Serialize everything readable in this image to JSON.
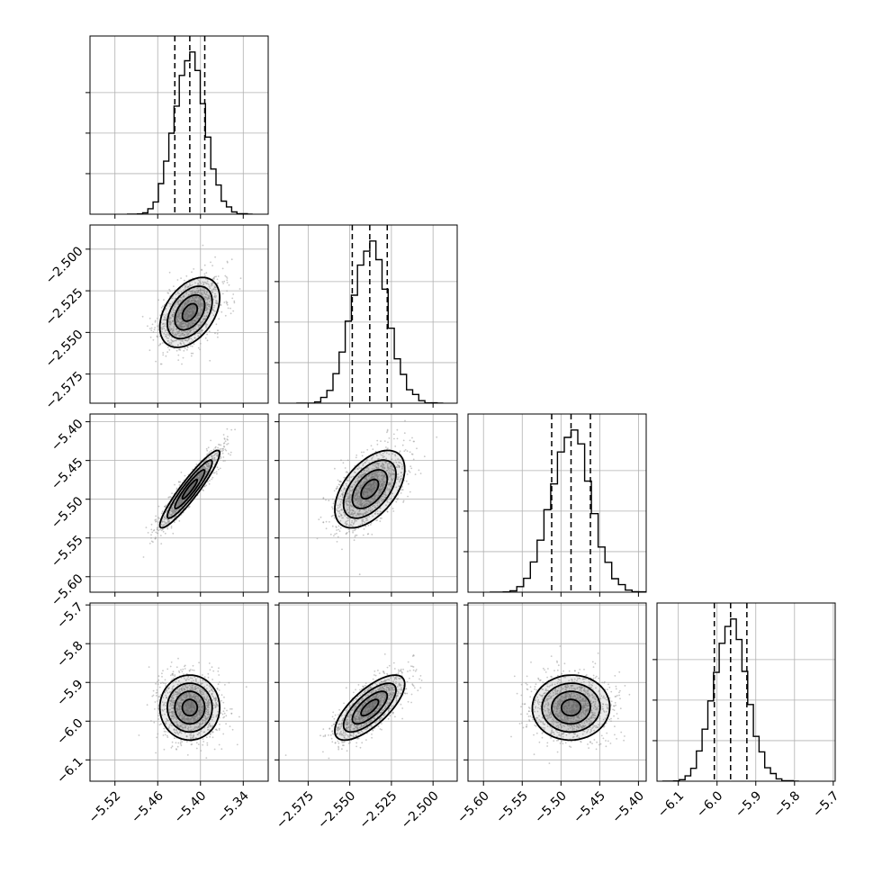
{
  "colors": {
    "ink": "#000000",
    "grid": "#b0b0b0",
    "scatter": "#9a9a9a",
    "density": "#5a5a5a",
    "background": "#ffffff"
  },
  "chart_data": {
    "type": "corner",
    "title": "",
    "grid": true,
    "parameters": [
      {
        "label": "",
        "mean": -5.415,
        "std": 0.021,
        "range": [
          -5.555,
          -5.305
        ],
        "ticks": [
          -5.52,
          -5.46,
          -5.4,
          -5.34
        ],
        "tick_labels": [
          "−5.52",
          "−5.46",
          "−5.40",
          "−5.34"
        ],
        "quantiles": [
          -5.436,
          -5.415,
          -5.394
        ]
      },
      {
        "label": "",
        "mean": -2.538,
        "std": 0.0105,
        "range": [
          -2.5925,
          -2.4855
        ],
        "ticks": [
          -2.575,
          -2.55,
          -2.525,
          -2.5
        ],
        "tick_labels": [
          "−2.575",
          "−2.550",
          "−2.525",
          "−2.500"
        ],
        "quantiles": [
          -2.5485,
          -2.538,
          -2.5275
        ]
      },
      {
        "label": "",
        "mean": -5.487,
        "std": 0.025,
        "range": [
          -5.62,
          -5.39
        ],
        "ticks": [
          -5.6,
          -5.55,
          -5.5,
          -5.45,
          -5.4
        ],
        "tick_labels": [
          "−5.60",
          "−5.55",
          "−5.50",
          "−5.45",
          "−5.40"
        ],
        "quantiles": [
          -5.512,
          -5.487,
          -5.462
        ]
      },
      {
        "label": "",
        "mean": -5.965,
        "std": 0.042,
        "range": [
          -6.155,
          -5.695
        ],
        "ticks": [
          -6.1,
          -6.0,
          -5.9,
          -5.8,
          -5.7
        ],
        "tick_labels": [
          "−6.1",
          "−6.0",
          "−5.9",
          "−5.8",
          "−5.7"
        ],
        "quantiles": [
          -6.007,
          -5.965,
          -5.923
        ]
      }
    ],
    "correlations": [
      {
        "pair": [
          1,
          0
        ],
        "r": 0.42
      },
      {
        "pair": [
          2,
          0
        ],
        "r": 0.93
      },
      {
        "pair": [
          2,
          1
        ],
        "r": 0.52
      },
      {
        "pair": [
          3,
          0
        ],
        "r": 0.0
      },
      {
        "pair": [
          3,
          1
        ],
        "r": 0.72
      },
      {
        "pair": [
          3,
          2
        ],
        "r": 0.02
      }
    ],
    "contour_levels_sigma": [
      0.5,
      1.0,
      1.5,
      2.0
    ],
    "diagonal": "1D histogram with dashed quantile lines at 16%, 50%, 84%",
    "off_diagonal": "2D scatter with density shading and contours"
  }
}
